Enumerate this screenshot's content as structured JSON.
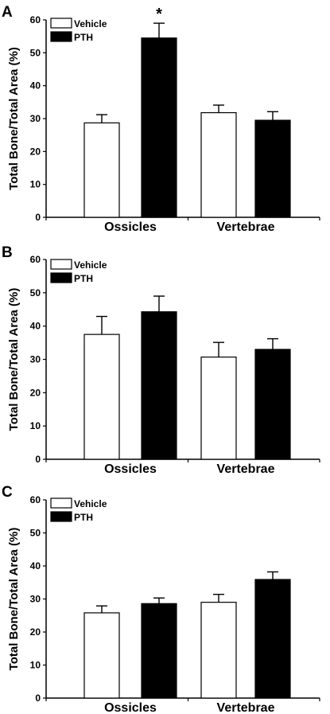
{
  "chart_data": [
    {
      "panel": "A",
      "type": "bar",
      "categories": [
        "Ossicles",
        "Vertebrae"
      ],
      "ylabel": "Total Bone/Total Area (%)",
      "ylim": [
        0,
        60
      ],
      "yticks": [
        "0",
        "10",
        "20",
        "30",
        "40",
        "50",
        "60"
      ],
      "legend_position": "top-left",
      "series": [
        {
          "name": "Vehicle",
          "fill": "#ffffff",
          "values": [
            28.7,
            31.8
          ],
          "errors": [
            2.5,
            2.3
          ]
        },
        {
          "name": "PTH",
          "fill": "#000000",
          "values": [
            54.5,
            29.5
          ],
          "errors": [
            4.5,
            2.6
          ]
        }
      ],
      "annotations": [
        {
          "text": "*",
          "category": "Ossicles",
          "series": "PTH"
        }
      ]
    },
    {
      "panel": "B",
      "type": "bar",
      "categories": [
        "Ossicles",
        "Vertebrae"
      ],
      "ylabel": "Total Bone/Total Area (%)",
      "ylim": [
        0,
        60
      ],
      "yticks": [
        "0",
        "10",
        "20",
        "30",
        "40",
        "50",
        "60"
      ],
      "legend_position": "top-left",
      "series": [
        {
          "name": "Vehicle",
          "fill": "#ffffff",
          "values": [
            37.5,
            30.7
          ],
          "errors": [
            5.4,
            4.4
          ]
        },
        {
          "name": "PTH",
          "fill": "#000000",
          "values": [
            44.3,
            33.0
          ],
          "errors": [
            4.7,
            3.2
          ]
        }
      ],
      "annotations": []
    },
    {
      "panel": "C",
      "type": "bar",
      "categories": [
        "Ossicles",
        "Vertebrae"
      ],
      "ylabel": "Total Bone/Total Area (%)",
      "ylim": [
        0,
        60
      ],
      "yticks": [
        "0",
        "10",
        "20",
        "30",
        "40",
        "50",
        "60"
      ],
      "legend_position": "top-left",
      "series": [
        {
          "name": "Vehicle",
          "fill": "#ffffff",
          "values": [
            25.8,
            29.0
          ],
          "errors": [
            2.1,
            2.4
          ]
        },
        {
          "name": "PTH",
          "fill": "#000000",
          "values": [
            28.6,
            35.9
          ],
          "errors": [
            1.7,
            2.3
          ]
        }
      ],
      "annotations": []
    }
  ]
}
